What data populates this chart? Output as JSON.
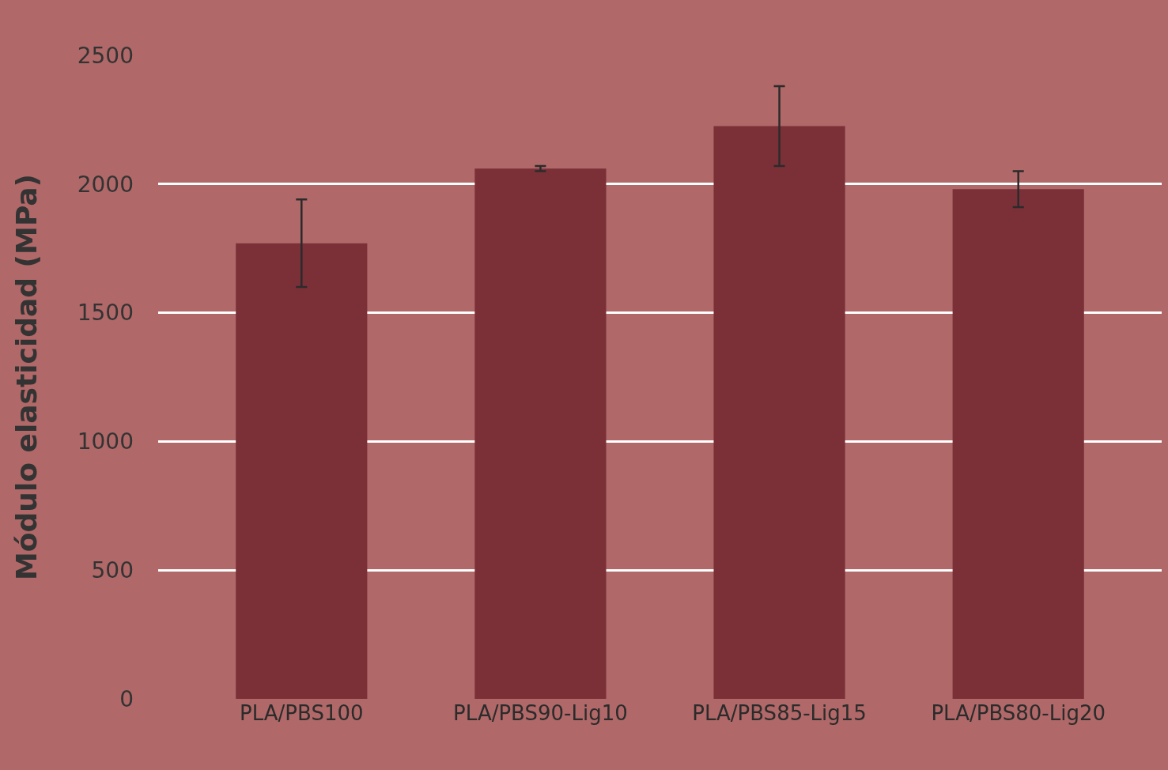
{
  "chart_data": {
    "type": "bar",
    "ylabel": "Módulo elasticidad (MPa)",
    "categories": [
      "PLA/PBS100",
      "PLA/PBS90-Lig10",
      "PLA/PBS85-Lig15",
      "PLA/PBS80-Lig20"
    ],
    "values": [
      1770,
      2060,
      2225,
      1980
    ],
    "errors": [
      170,
      10,
      155,
      70
    ],
    "color": "#7b3038",
    "ylim": [
      0,
      2500
    ],
    "yticks": [
      0,
      500,
      1000,
      1500,
      2000,
      2500
    ],
    "grid": "y"
  }
}
